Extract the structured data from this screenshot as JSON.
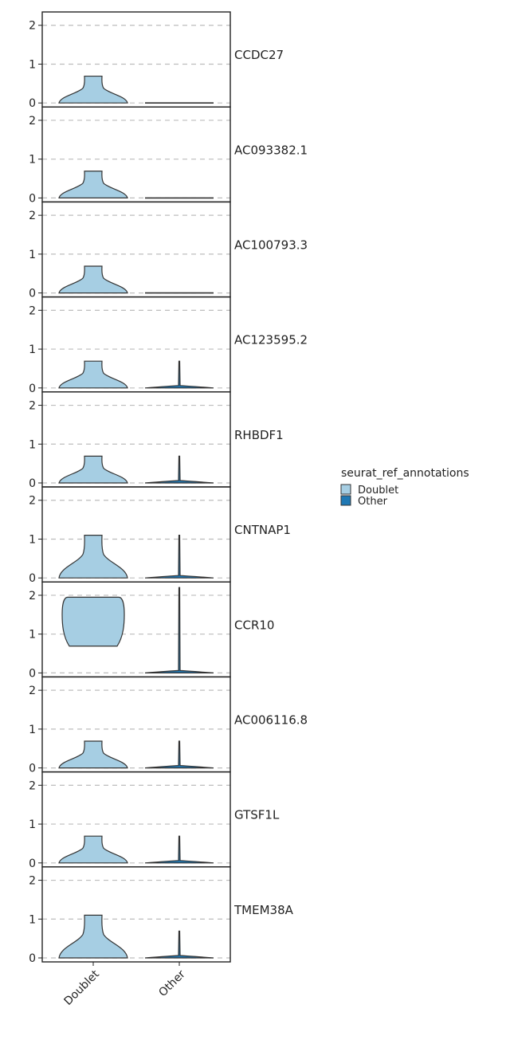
{
  "chart_data": {
    "type": "violin",
    "title": "",
    "xlabel": "",
    "ylabel": "",
    "categories": [
      "Doublet",
      "Other"
    ],
    "ylim": [
      0,
      2.2
    ],
    "yticks": [
      "0",
      "1",
      "2"
    ],
    "grid": "horizontal-dashed",
    "legend": {
      "title": "seurat_ref_annotations",
      "position": "right",
      "entries": [
        {
          "name": "Doublet",
          "color": "#a6cee3"
        },
        {
          "name": "Other",
          "color": "#1f78b4"
        }
      ]
    },
    "panels": [
      {
        "gene": "CCDC27",
        "doublet_max": 0.69,
        "doublet_min": 0,
        "other_max": 0
      },
      {
        "gene": "AC093382.1",
        "doublet_max": 0.69,
        "doublet_min": 0,
        "other_max": 0
      },
      {
        "gene": "AC100793.3",
        "doublet_max": 0.69,
        "doublet_min": 0,
        "other_max": 0
      },
      {
        "gene": "AC123595.2",
        "doublet_max": 0.69,
        "doublet_min": 0,
        "other_max": 0.69
      },
      {
        "gene": "RHBDF1",
        "doublet_max": 0.69,
        "doublet_min": 0,
        "other_max": 0.69
      },
      {
        "gene": "CNTNAP1",
        "doublet_max": 1.1,
        "doublet_min": 0,
        "other_max": 1.1
      },
      {
        "gene": "CCR10",
        "doublet_max": 1.95,
        "doublet_min": 0.69,
        "other_max": 2.2
      },
      {
        "gene": "AC006116.8",
        "doublet_max": 0.69,
        "doublet_min": 0,
        "other_max": 0.69
      },
      {
        "gene": "GTSF1L",
        "doublet_max": 0.69,
        "doublet_min": 0,
        "other_max": 0.69
      },
      {
        "gene": "TMEM38A",
        "doublet_max": 1.1,
        "doublet_min": 0,
        "other_max": 0.69
      }
    ]
  }
}
